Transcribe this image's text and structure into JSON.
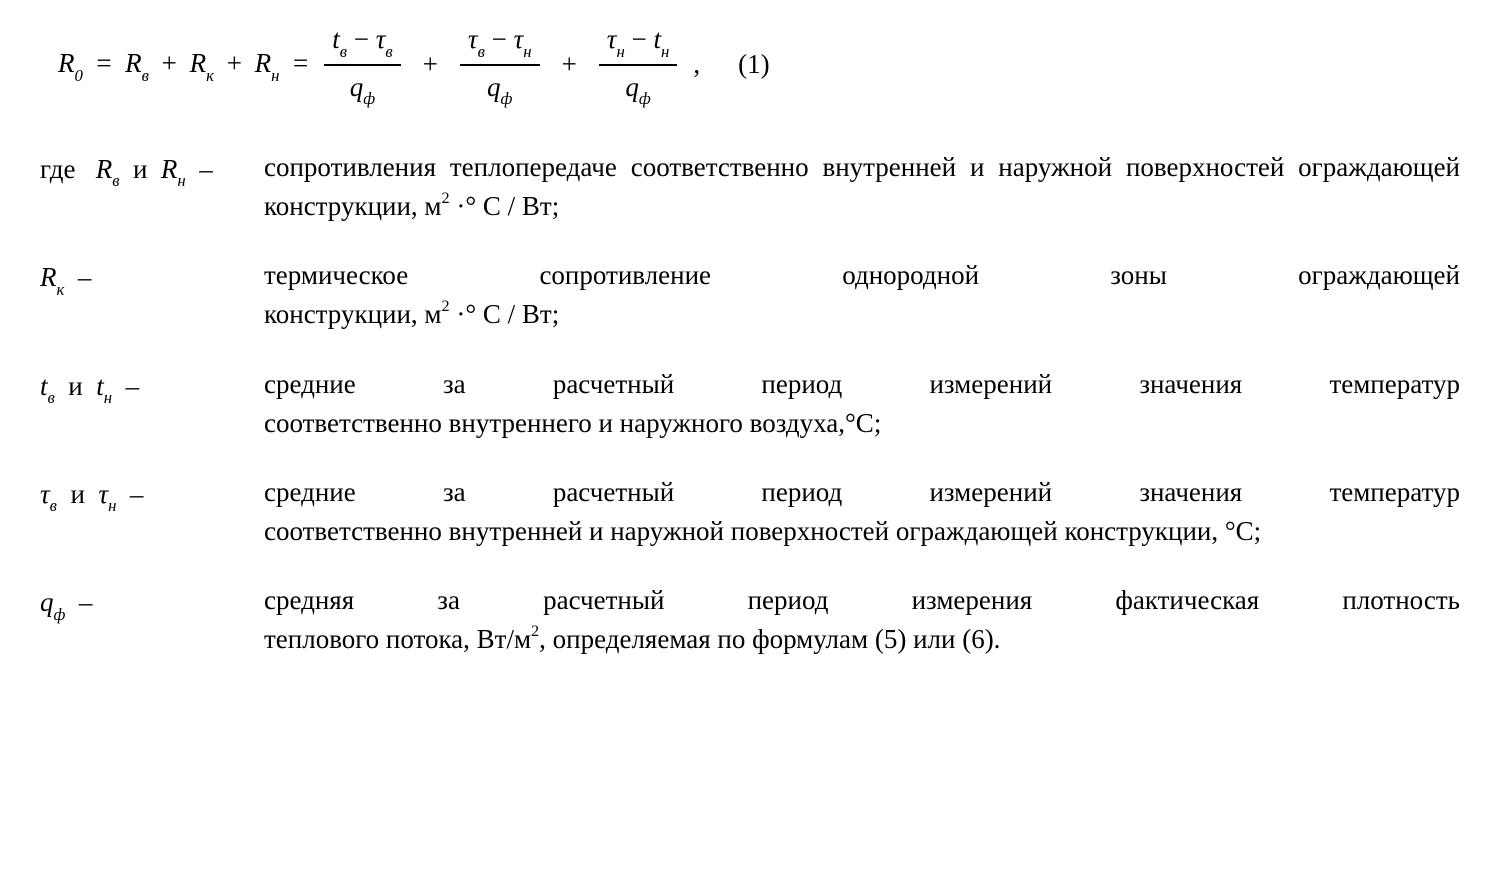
{
  "formula": {
    "lhs": "R",
    "lhs_sub": "0",
    "eq": "=",
    "r_v": "R",
    "r_v_sub": "в",
    "plus": "+",
    "r_k": "R",
    "r_k_sub": "к",
    "r_n": "R",
    "r_n_sub": "н",
    "frac1_num_a": "t",
    "frac1_num_a_sub": "в",
    "minus": "−",
    "frac1_num_b": "τ",
    "frac1_num_b_sub": "в",
    "frac_den_q": "q",
    "frac_den_q_sub": "ф",
    "frac2_num_a": "τ",
    "frac2_num_a_sub": "в",
    "frac2_num_b": "τ",
    "frac2_num_b_sub": "н",
    "frac3_num_a": "τ",
    "frac3_num_a_sub": "н",
    "frac3_num_b": "t",
    "frac3_num_b_sub": "н",
    "tail": ",",
    "eq_number": "(1)"
  },
  "where_label": "где",
  "and_label": "и",
  "dash": "–",
  "rows": {
    "r1": {
      "sym_a": "R",
      "sym_a_sub": "в",
      "sym_b": "R",
      "sym_b_sub": "н",
      "txt_a": "сопротивления теплопередаче соответственно внутренней и наружной поверхностей ограждающей конструкции, м",
      "txt_unit": " ·° С /  Вт;"
    },
    "r2": {
      "sym": "R",
      "sym_sub": "к",
      "line1_w1": "термическое",
      "line1_w2": "сопротивление",
      "line1_w3": "однородной",
      "line1_w4": "зоны",
      "line1_w5": "ограждающей",
      "line2_a": "конструкции, м",
      "line2_b": " ·° С /  Вт;"
    },
    "r3": {
      "sym_a": "t",
      "sym_a_sub": "в",
      "sym_b": "t",
      "sym_b_sub": "н",
      "line1_w1": "средние",
      "line1_w2": "за",
      "line1_w3": "расчетный",
      "line1_w4": "период",
      "line1_w5": "измерений",
      "line1_w6": "значения",
      "line1_w7": "температур",
      "line2": "соответственно внутреннего и наружного воздуха,°С;"
    },
    "r4": {
      "sym_a": "τ",
      "sym_a_sub": "в",
      "sym_b": "τ",
      "sym_b_sub": "н",
      "line1_w1": "средние",
      "line1_w2": "за",
      "line1_w3": "расчетный",
      "line1_w4": "период",
      "line1_w5": "измерений",
      "line1_w6": "значения",
      "line1_w7": "температур",
      "line2": "соответственно внутренней и наружной поверхностей ограждающей конструкции, °С;"
    },
    "r5": {
      "sym": "q",
      "sym_sub": "ф",
      "line1_w1": "средняя",
      "line1_w2": "за",
      "line1_w3": "расчетный",
      "line1_w4": "период",
      "line1_w5": "измерения",
      "line1_w6": "фактическая",
      "line1_w7": "плотность",
      "line2_a": "теплового потока, Вт/м",
      "line2_b": ", определяемая по формулам (5) или (6)."
    }
  }
}
